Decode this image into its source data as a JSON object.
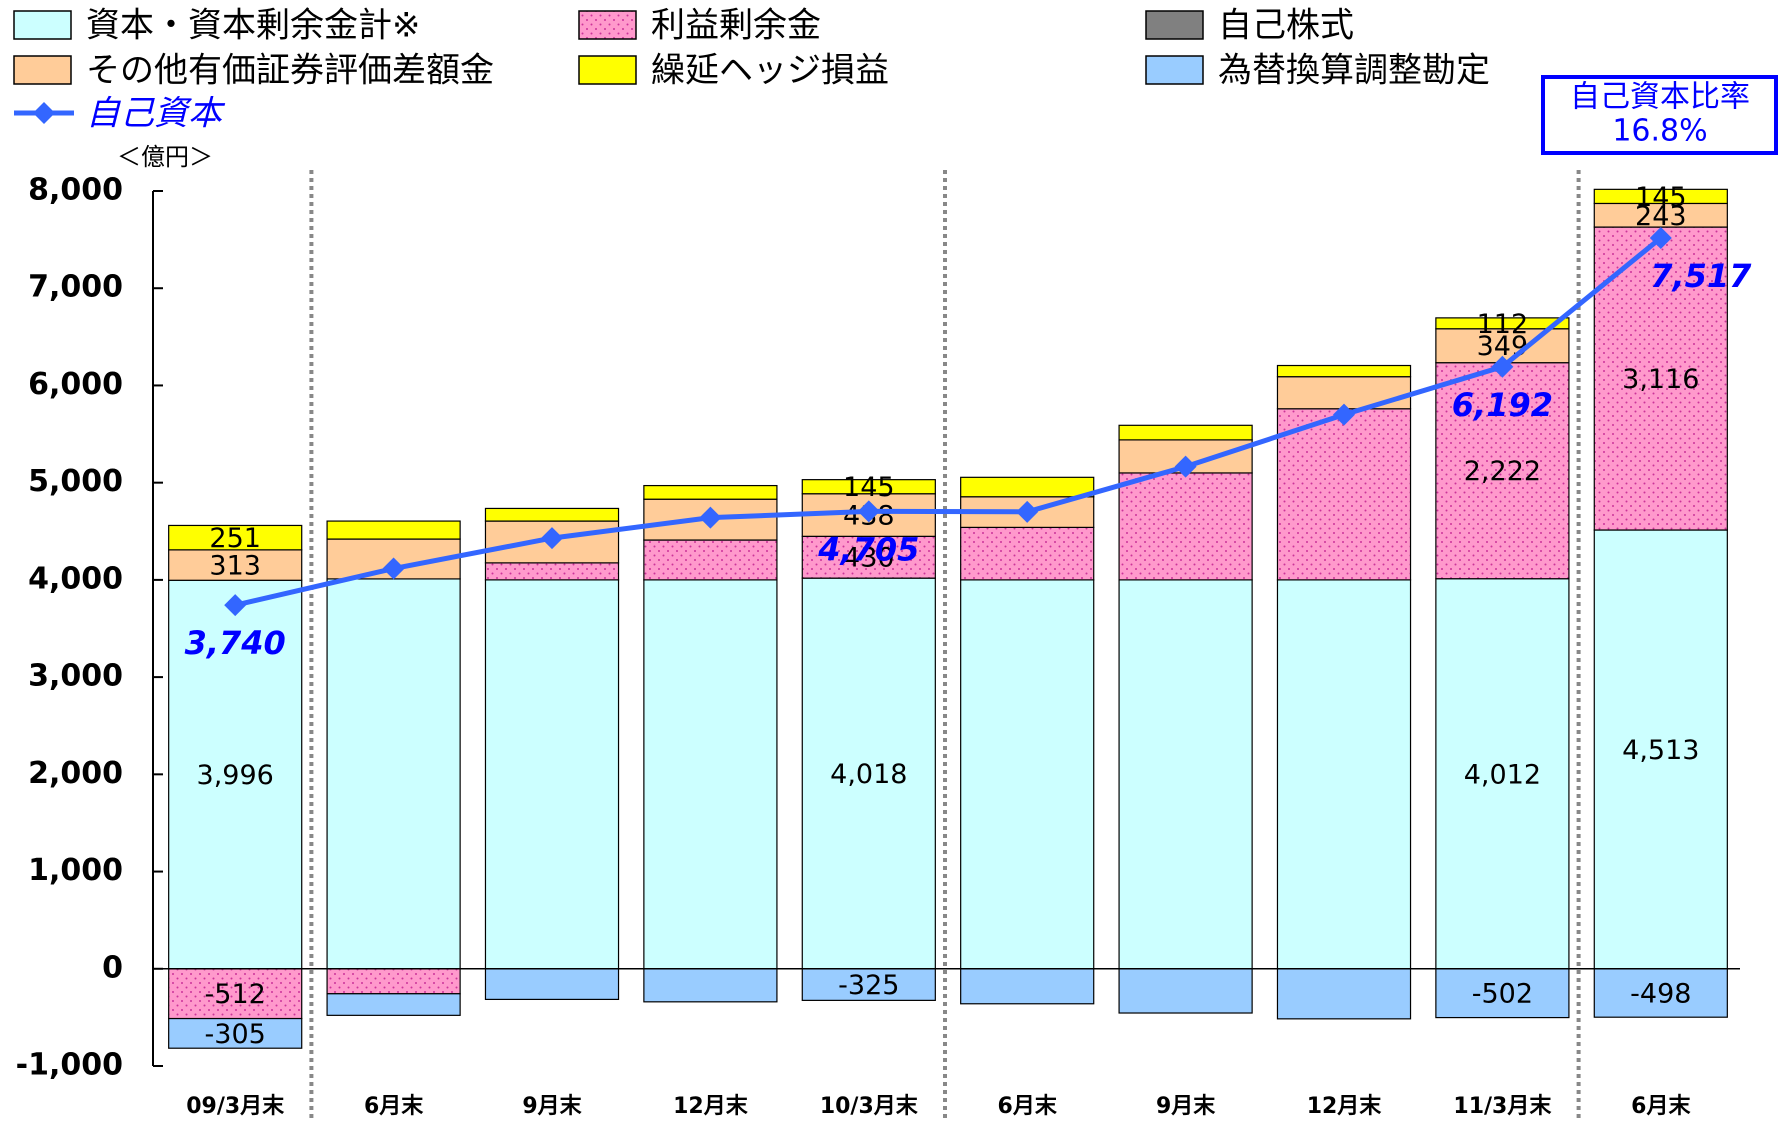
{
  "chart_data": {
    "type": "bar",
    "y_unit_label": "＜億円＞",
    "categories": [
      "09/3月末",
      "6月末",
      "9月末",
      "12月末",
      "10/3月末",
      "6月末",
      "9月末",
      "12月末",
      "11/3月末",
      "6月末"
    ],
    "series": [
      {
        "name": "資本・資本剰余金計※",
        "color": "#ccffff",
        "values": [
          3996,
          4010,
          4000,
          4000,
          4018,
          4000,
          4000,
          4000,
          4012,
          4513
        ],
        "value_labels": [
          "3,996",
          null,
          null,
          null,
          "4,018",
          null,
          null,
          null,
          "4,012",
          "4,513"
        ]
      },
      {
        "name": "利益剰余金",
        "color": "#ff99cc",
        "pattern": "dots",
        "values": [
          -512,
          -257,
          175,
          410,
          430,
          540,
          1100,
          1760,
          2222,
          3116
        ],
        "value_labels": [
          "-512",
          null,
          null,
          null,
          "430",
          null,
          null,
          null,
          "2,222",
          "3,116"
        ]
      },
      {
        "name": "自己株式",
        "color": "#808080",
        "values": [
          0,
          0,
          0,
          0,
          0,
          0,
          0,
          0,
          0,
          0
        ],
        "value_labels": [
          null,
          null,
          null,
          null,
          null,
          null,
          null,
          null,
          null,
          null
        ]
      },
      {
        "name": "その他有価証券評価差額金",
        "color": "#ffcc99",
        "values": [
          313,
          410,
          430,
          420,
          438,
          315,
          340,
          330,
          349,
          243
        ],
        "value_labels": [
          "313",
          null,
          null,
          null,
          "438",
          null,
          null,
          null,
          "349",
          "243"
        ]
      },
      {
        "name": "繰延ヘッジ損益",
        "color": "#ffff00",
        "values": [
          251,
          185,
          130,
          140,
          145,
          200,
          150,
          115,
          112,
          145
        ],
        "value_labels": [
          "251",
          null,
          null,
          null,
          "145",
          null,
          null,
          null,
          "112",
          "145"
        ]
      },
      {
        "name": "為替換算調整勘定",
        "color": "#99ccff",
        "values": [
          -305,
          -222,
          -315,
          -340,
          -325,
          -360,
          -455,
          -515,
          -502,
          -498
        ],
        "value_labels": [
          "-305",
          null,
          null,
          null,
          "-325",
          null,
          null,
          null,
          "-502",
          "-498"
        ]
      },
      {
        "name": "自己資本",
        "type": "line",
        "color": "#3366ff",
        "values": [
          3740,
          4117,
          4430,
          4640,
          4705,
          4700,
          5165,
          5700,
          6192,
          7517
        ],
        "value_labels": [
          "3,740",
          null,
          null,
          null,
          "4,705",
          null,
          null,
          null,
          "6,192",
          "7,517"
        ]
      }
    ],
    "annotation": [
      "自己資本比率",
      "16.8%"
    ],
    "ylim": [
      -1000,
      8000
    ],
    "yticks": [
      {
        "value": -1000,
        "label": "-1,000"
      },
      0,
      {
        "value": 1000,
        "label": "1,000"
      },
      {
        "value": 2000,
        "label": "2,000"
      },
      {
        "value": 3000,
        "label": "3,000"
      },
      {
        "value": 4000,
        "label": "4,000"
      },
      {
        "value": 5000,
        "label": "5,000"
      },
      {
        "value": 6000,
        "label": "6,000"
      },
      {
        "value": 7000,
        "label": "7,000"
      },
      {
        "value": 8000,
        "label": "8,000"
      }
    ]
  }
}
